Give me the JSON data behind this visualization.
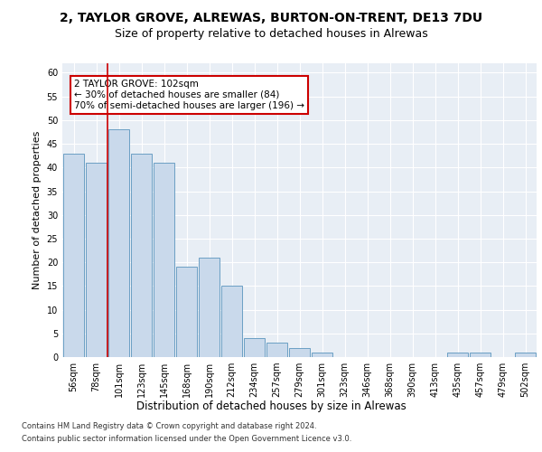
{
  "title1": "2, TAYLOR GROVE, ALREWAS, BURTON-ON-TRENT, DE13 7DU",
  "title2": "Size of property relative to detached houses in Alrewas",
  "xlabel": "Distribution of detached houses by size in Alrewas",
  "ylabel": "Number of detached properties",
  "categories": [
    "56sqm",
    "78sqm",
    "101sqm",
    "123sqm",
    "145sqm",
    "168sqm",
    "190sqm",
    "212sqm",
    "234sqm",
    "257sqm",
    "279sqm",
    "301sqm",
    "323sqm",
    "346sqm",
    "368sqm",
    "390sqm",
    "413sqm",
    "435sqm",
    "457sqm",
    "479sqm",
    "502sqm"
  ],
  "values": [
    43,
    41,
    48,
    43,
    41,
    19,
    21,
    15,
    4,
    3,
    2,
    1,
    0,
    0,
    0,
    0,
    0,
    1,
    1,
    0,
    1
  ],
  "bar_color": "#c9d9eb",
  "bar_edge_color": "#6b9fc4",
  "red_line_index": 2,
  "annotation_text": "2 TAYLOR GROVE: 102sqm\n← 30% of detached houses are smaller (84)\n70% of semi-detached houses are larger (196) →",
  "annotation_box_color": "#ffffff",
  "annotation_box_edge_color": "#cc0000",
  "ylim": [
    0,
    62
  ],
  "yticks": [
    0,
    5,
    10,
    15,
    20,
    25,
    30,
    35,
    40,
    45,
    50,
    55,
    60
  ],
  "footer1": "Contains HM Land Registry data © Crown copyright and database right 2024.",
  "footer2": "Contains public sector information licensed under the Open Government Licence v3.0.",
  "plot_bg_color": "#e8eef5",
  "title1_fontsize": 10,
  "title2_fontsize": 9,
  "tick_fontsize": 7,
  "ylabel_fontsize": 8,
  "xlabel_fontsize": 8.5,
  "annotation_fontsize": 7.5,
  "footer_fontsize": 6
}
